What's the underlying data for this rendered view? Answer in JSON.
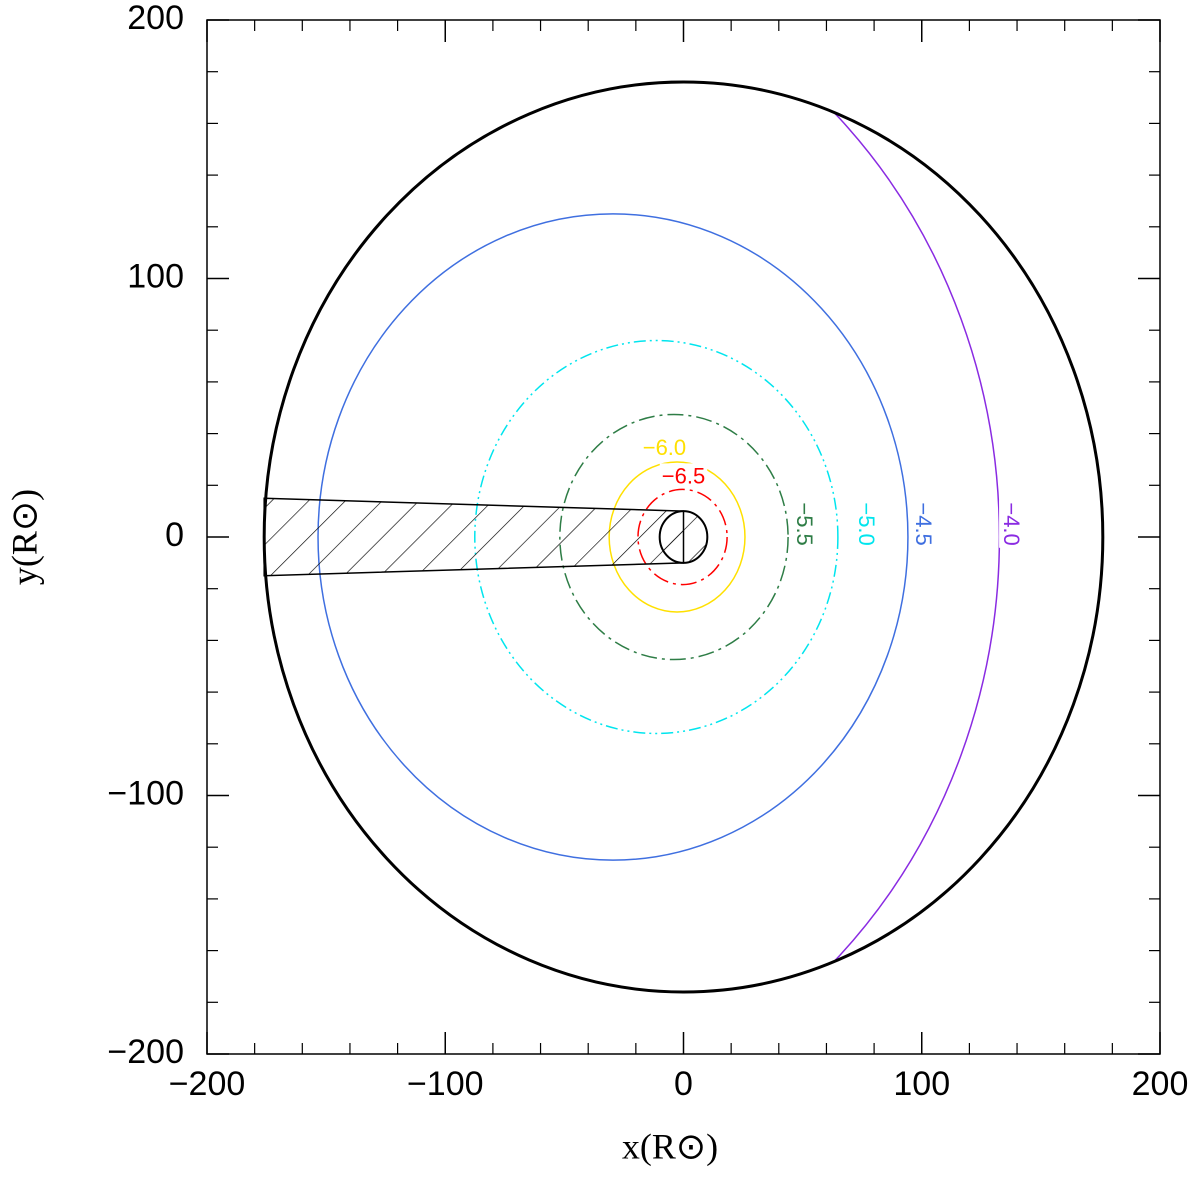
{
  "chart_data": {
    "type": "contour",
    "xlabel": "x(R⊙)",
    "ylabel": "y(R⊙)",
    "xlim": [
      -200,
      200
    ],
    "ylim": [
      -200,
      200
    ],
    "xticks": [
      {
        "value": -200,
        "label": "−200"
      },
      {
        "value": -100,
        "label": "−100"
      },
      0,
      100,
      200
    ],
    "yticks": [
      {
        "value": -200,
        "label": "−200"
      },
      {
        "value": -100,
        "label": "−100"
      },
      0,
      100,
      200
    ],
    "xminorticks": [
      -180,
      -160,
      -140,
      -120,
      -80,
      -60,
      -40,
      -20,
      20,
      40,
      60,
      80,
      120,
      140,
      160,
      180
    ],
    "yminorticks": [
      -180,
      -160,
      -140,
      -120,
      -80,
      -60,
      -40,
      -20,
      20,
      40,
      60,
      80,
      120,
      140,
      160,
      180
    ],
    "boundary": {
      "cx": 0,
      "cy": 0,
      "r": 176,
      "color": "#000000"
    },
    "core": {
      "cx": 0,
      "cy": 0,
      "r": 10,
      "color": "#000000"
    },
    "shaded_region": {
      "x": [
        -176,
        0,
        0,
        -176
      ],
      "y": [
        15,
        10,
        -10,
        -15
      ],
      "color": "#000000"
    },
    "contours": [
      {
        "level": {
          "value": -6,
          "label": "−6.0"
        },
        "color": "#ffe000",
        "linestyle": "solid",
        "cx": -2.7,
        "cy": 0,
        "rx": 28.5,
        "ry": 29,
        "label_x": -8,
        "label_y": 34,
        "label_vertical": false
      },
      {
        "level": {
          "value": -6.5,
          "label": "−6.5"
        },
        "color": "#ff0000",
        "linestyle": "dashdot",
        "cx": -0.4,
        "cy": 0,
        "rx": 18.7,
        "ry": 18.4,
        "label_x": 0,
        "label_y": 23,
        "label_vertical": false
      },
      {
        "level": {
          "value": -5.5,
          "label": "−5.5"
        },
        "color": "#2e7d46",
        "linestyle": "dashdot",
        "cx": -4,
        "cy": 0,
        "rx": 47.9,
        "ry": 47.4,
        "label_x": 50,
        "label_y": 5,
        "label_vertical": true
      },
      {
        "level": {
          "value": -5,
          "label": "−5.0"
        },
        "color": "#00e5ee",
        "linestyle": "dashdotdot",
        "cx": -11.4,
        "cy": 0,
        "rx": 76.2,
        "ry": 76,
        "label_x": 76,
        "label_y": 5,
        "label_vertical": true
      },
      {
        "level": {
          "value": -4.5,
          "label": "−4.5"
        },
        "color": "#3f6fe0",
        "linestyle": "solid",
        "cx": -29.6,
        "cy": 0,
        "rx": 123.8,
        "ry": 125,
        "label_x": 100,
        "label_y": 5,
        "label_vertical": true
      },
      {
        "level": {
          "value": -4,
          "label": "−4.0"
        },
        "color": "#8a2be2",
        "linestyle": "solid",
        "cx": -96.4,
        "cy": 0,
        "rx": 229,
        "ry": 229,
        "label_x": 137,
        "label_y": 5,
        "label_vertical": true
      }
    ]
  }
}
